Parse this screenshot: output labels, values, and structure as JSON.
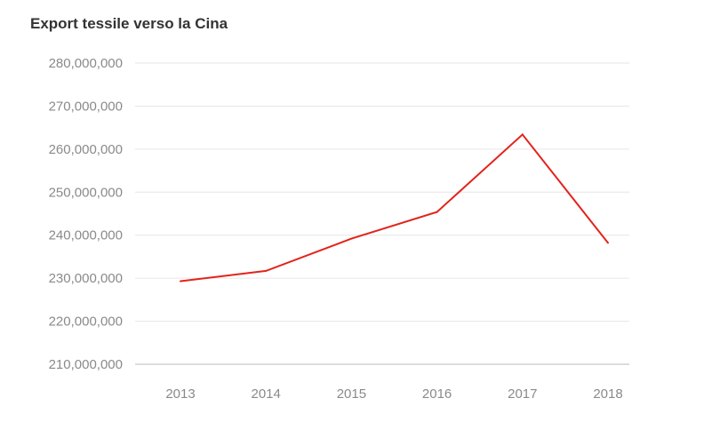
{
  "chart_data": {
    "type": "line",
    "title": "Export tessile verso la Cina",
    "xlabel": "",
    "ylabel": "",
    "categories": [
      "2013",
      "2014",
      "2015",
      "2016",
      "2017",
      "2018"
    ],
    "series": [
      {
        "values": [
          229300000,
          231700000,
          239200000,
          245400000,
          263400000,
          238200000
        ],
        "color": "#e2231a"
      }
    ],
    "ylim": [
      210000000,
      280000000
    ],
    "yticks": [
      {
        "value": 280000000,
        "label": "280,000,000"
      },
      {
        "value": 270000000,
        "label": "270,000,000"
      },
      {
        "value": 260000000,
        "label": "260,000,000"
      },
      {
        "value": 250000000,
        "label": "250,000,000"
      },
      {
        "value": 240000000,
        "label": "240,000,000"
      },
      {
        "value": 230000000,
        "label": "230,000,000"
      },
      {
        "value": 220000000,
        "label": "220,000,000"
      },
      {
        "value": 210000000,
        "label": "210,000,000"
      }
    ],
    "grid": true,
    "legend": "none"
  }
}
